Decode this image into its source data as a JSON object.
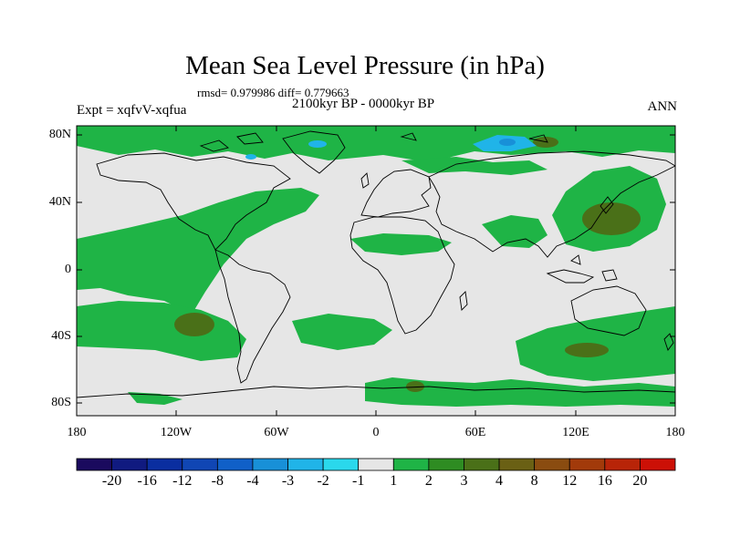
{
  "header": {
    "title": "Mean Sea Level Pressure (in hPa)",
    "stats": "rmsd= 0.979986 diff= 0.779663",
    "subtitle": "2100kyr BP - 0000kyr BP",
    "expt": "Expt = xqfvV-xqfua",
    "season": "ANN"
  },
  "axes": {
    "lat_labels": [
      "80N",
      "40N",
      "0",
      "40S",
      "80S"
    ],
    "lon_labels": [
      "180",
      "120W",
      "60W",
      "0",
      "60E",
      "120E",
      "180"
    ]
  },
  "colorbar": {
    "colors": [
      "#1a0a5e",
      "#101a80",
      "#0a2ea0",
      "#1046b4",
      "#1060c8",
      "#1890d8",
      "#20b4e8",
      "#2ad8ec",
      "#e6e6e6",
      "#1fb446",
      "#2e8c22",
      "#4a7018",
      "#6a6014",
      "#8a4c10",
      "#a23a0a",
      "#b82408",
      "#cc1006"
    ],
    "labels": [
      "-20",
      "-16",
      "-12",
      "-8",
      "-4",
      "-3",
      "-2",
      "-1",
      "1",
      "2",
      "3",
      "4",
      "8",
      "12",
      "16",
      "20"
    ]
  },
  "map_colors": {
    "ocean_neutral": "#e6e6e6",
    "positive_1_2": "#1fb446",
    "positive_3_4": "#4a7018",
    "negative_1_2": "#20b4e8",
    "negative_2_3": "#1890d8"
  }
}
